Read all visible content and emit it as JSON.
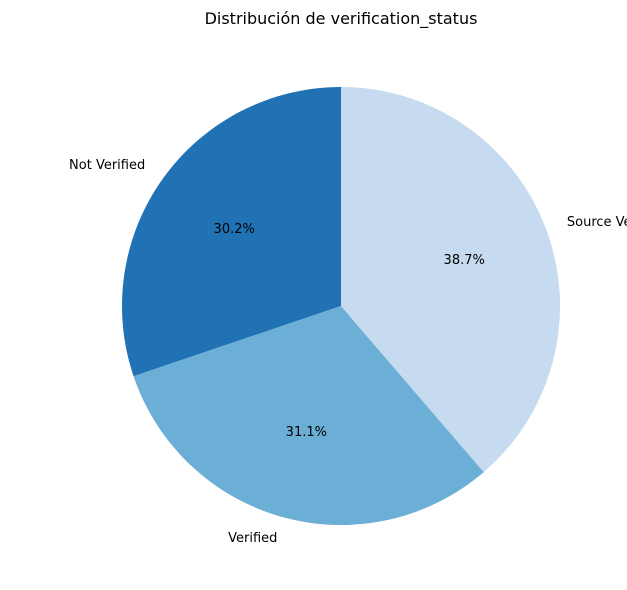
{
  "chart_data": {
    "type": "pie",
    "title": "Distribución de verification_status",
    "start_angle_deg": 90,
    "direction": "counterclockwise",
    "slices": [
      {
        "label": "Not Verified",
        "value": 30.2,
        "pct_label": "30.2%",
        "color": "#2171b5"
      },
      {
        "label": "Verified",
        "value": 31.1,
        "pct_label": "31.1%",
        "color": "#6baed6"
      },
      {
        "label": "Source Verified",
        "value": 38.7,
        "pct_label": "38.7%",
        "color": "#c6dbef"
      }
    ]
  }
}
